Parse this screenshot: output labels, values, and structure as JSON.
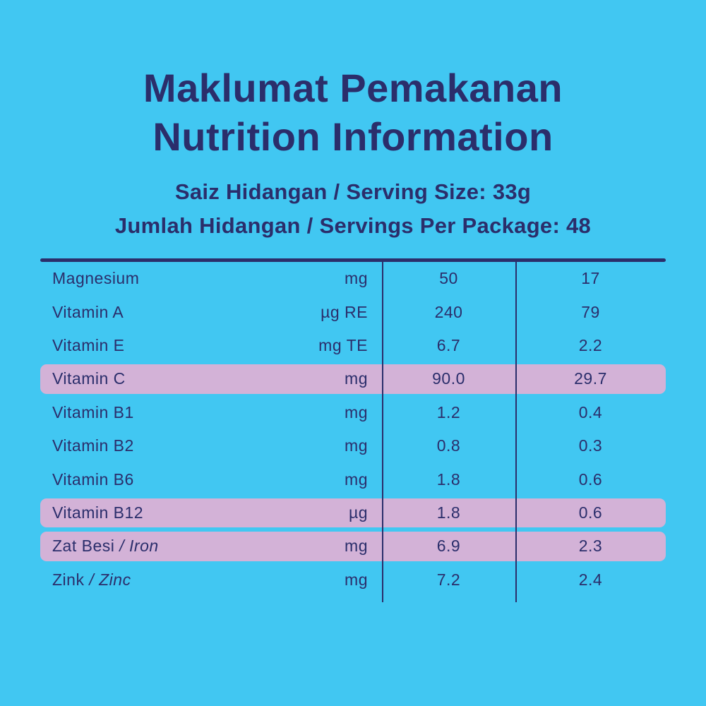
{
  "colors": {
    "background": "#41C7F2",
    "text": "#2B2E6B",
    "highlight": "#D3B2D7",
    "rule": "#2B2E6B"
  },
  "header": {
    "title_line1": "Maklumat Pemakanan",
    "title_line2": "Nutrition Information",
    "serving_line1": "Saiz Hidangan / Serving Size: 33g",
    "serving_line2": "Jumlah Hidangan / Servings Per Package: 48"
  },
  "table": {
    "rows": [
      {
        "name": "Magnesium",
        "name_italic": "",
        "unit": "mg",
        "value1": "50",
        "value2": "17",
        "highlighted": false
      },
      {
        "name": "Vitamin A",
        "name_italic": "",
        "unit": "µg RE",
        "value1": "240",
        "value2": "79",
        "highlighted": false
      },
      {
        "name": "Vitamin E",
        "name_italic": "",
        "unit": "mg TE",
        "value1": "6.7",
        "value2": "2.2",
        "highlighted": false
      },
      {
        "name": "Vitamin C",
        "name_italic": "",
        "unit": "mg",
        "value1": "90.0",
        "value2": "29.7",
        "highlighted": true
      },
      {
        "name": "Vitamin B1",
        "name_italic": "",
        "unit": "mg",
        "value1": "1.2",
        "value2": "0.4",
        "highlighted": false
      },
      {
        "name": "Vitamin B2",
        "name_italic": "",
        "unit": "mg",
        "value1": "0.8",
        "value2": "0.3",
        "highlighted": false
      },
      {
        "name": "Vitamin B6",
        "name_italic": "",
        "unit": "mg",
        "value1": "1.8",
        "value2": "0.6",
        "highlighted": false
      },
      {
        "name": "Vitamin B12",
        "name_italic": "",
        "unit": "µg",
        "value1": "1.8",
        "value2": "0.6",
        "highlighted": true
      },
      {
        "name": "Zat Besi",
        "name_italic": "/ Iron",
        "unit": "mg",
        "value1": "6.9",
        "value2": "2.3",
        "highlighted": true
      },
      {
        "name": "Zink",
        "name_italic": "/ Zinc",
        "unit": "mg",
        "value1": "7.2",
        "value2": "2.4",
        "highlighted": false
      }
    ]
  }
}
